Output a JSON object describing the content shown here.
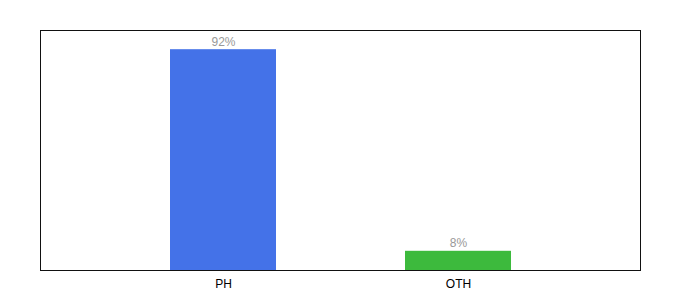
{
  "chart_data": {
    "type": "bar",
    "categories": [
      "PH",
      "OTH"
    ],
    "values": [
      92,
      8
    ],
    "value_labels": [
      "92%",
      "8%"
    ],
    "colors": [
      "#4472e8",
      "#3dba3d"
    ],
    "ylim": [
      0,
      100
    ],
    "yticks": [],
    "tick_labels": "x",
    "grid": false
  }
}
